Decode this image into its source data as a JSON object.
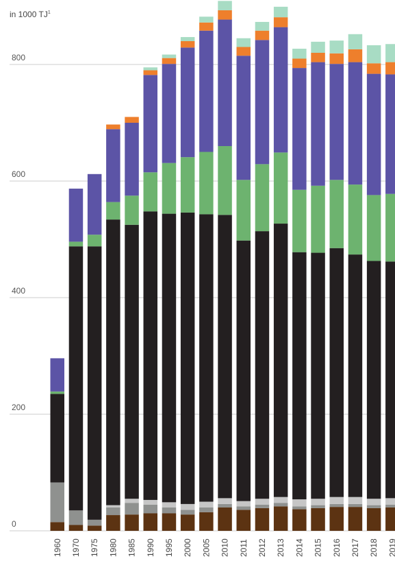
{
  "chart_data": {
    "type": "bar",
    "stacked": true,
    "ylabel": "in 1000 TJ",
    "ylabel_sup": "1",
    "ylim": [
      0,
      900
    ],
    "yticks": [
      0,
      200,
      400,
      600,
      800
    ],
    "grid": true,
    "categories": [
      "1960",
      "1970",
      "1975",
      "1980",
      "1985",
      "1990",
      "1995",
      "2000",
      "2005",
      "2010",
      "2011",
      "2012",
      "2013",
      "2014",
      "2015",
      "2016",
      "2017",
      "2018",
      "2019"
    ],
    "series": [
      {
        "color": "#5c3312",
        "values": [
          15,
          10,
          9,
          27,
          28,
          30,
          30,
          28,
          32,
          40,
          36,
          39,
          42,
          37,
          39,
          41,
          41,
          39,
          40
        ]
      },
      {
        "color": "#8f918f",
        "values": [
          68,
          25,
          10,
          13,
          20,
          15,
          10,
          8,
          8,
          6,
          6,
          6,
          6,
          5,
          5,
          5,
          5,
          5,
          5
        ]
      },
      {
        "color": "#c6c6c6",
        "values": [
          0,
          0,
          0,
          4,
          7,
          8,
          9,
          10,
          10,
          10,
          9,
          10,
          10,
          12,
          11,
          12,
          12,
          11,
          11
        ]
      },
      {
        "color": "#231f20",
        "values": [
          152,
          453,
          469,
          490,
          470,
          495,
          495,
          500,
          493,
          486,
          447,
          459,
          469,
          424,
          422,
          427,
          416,
          408,
          406
        ]
      },
      {
        "color": "#6db36f",
        "values": [
          4,
          8,
          20,
          30,
          50,
          67,
          87,
          95,
          107,
          118,
          104,
          115,
          122,
          107,
          115,
          117,
          120,
          113,
          116
        ]
      },
      {
        "color": "#5c54a6",
        "values": [
          57,
          91,
          104,
          125,
          125,
          167,
          170,
          188,
          208,
          217,
          213,
          213,
          215,
          209,
          212,
          199,
          210,
          208,
          205
        ]
      },
      {
        "color": "#ee7f2c",
        "values": [
          0,
          0,
          0,
          8,
          10,
          8,
          10,
          11,
          14,
          16,
          15,
          16,
          17,
          16,
          16,
          18,
          22,
          18,
          21
        ]
      },
      {
        "color": "#a8dcc4",
        "values": [
          0,
          0,
          0,
          0,
          0,
          5,
          6,
          7,
          10,
          16,
          15,
          15,
          18,
          17,
          19,
          22,
          26,
          31,
          31
        ]
      }
    ]
  }
}
